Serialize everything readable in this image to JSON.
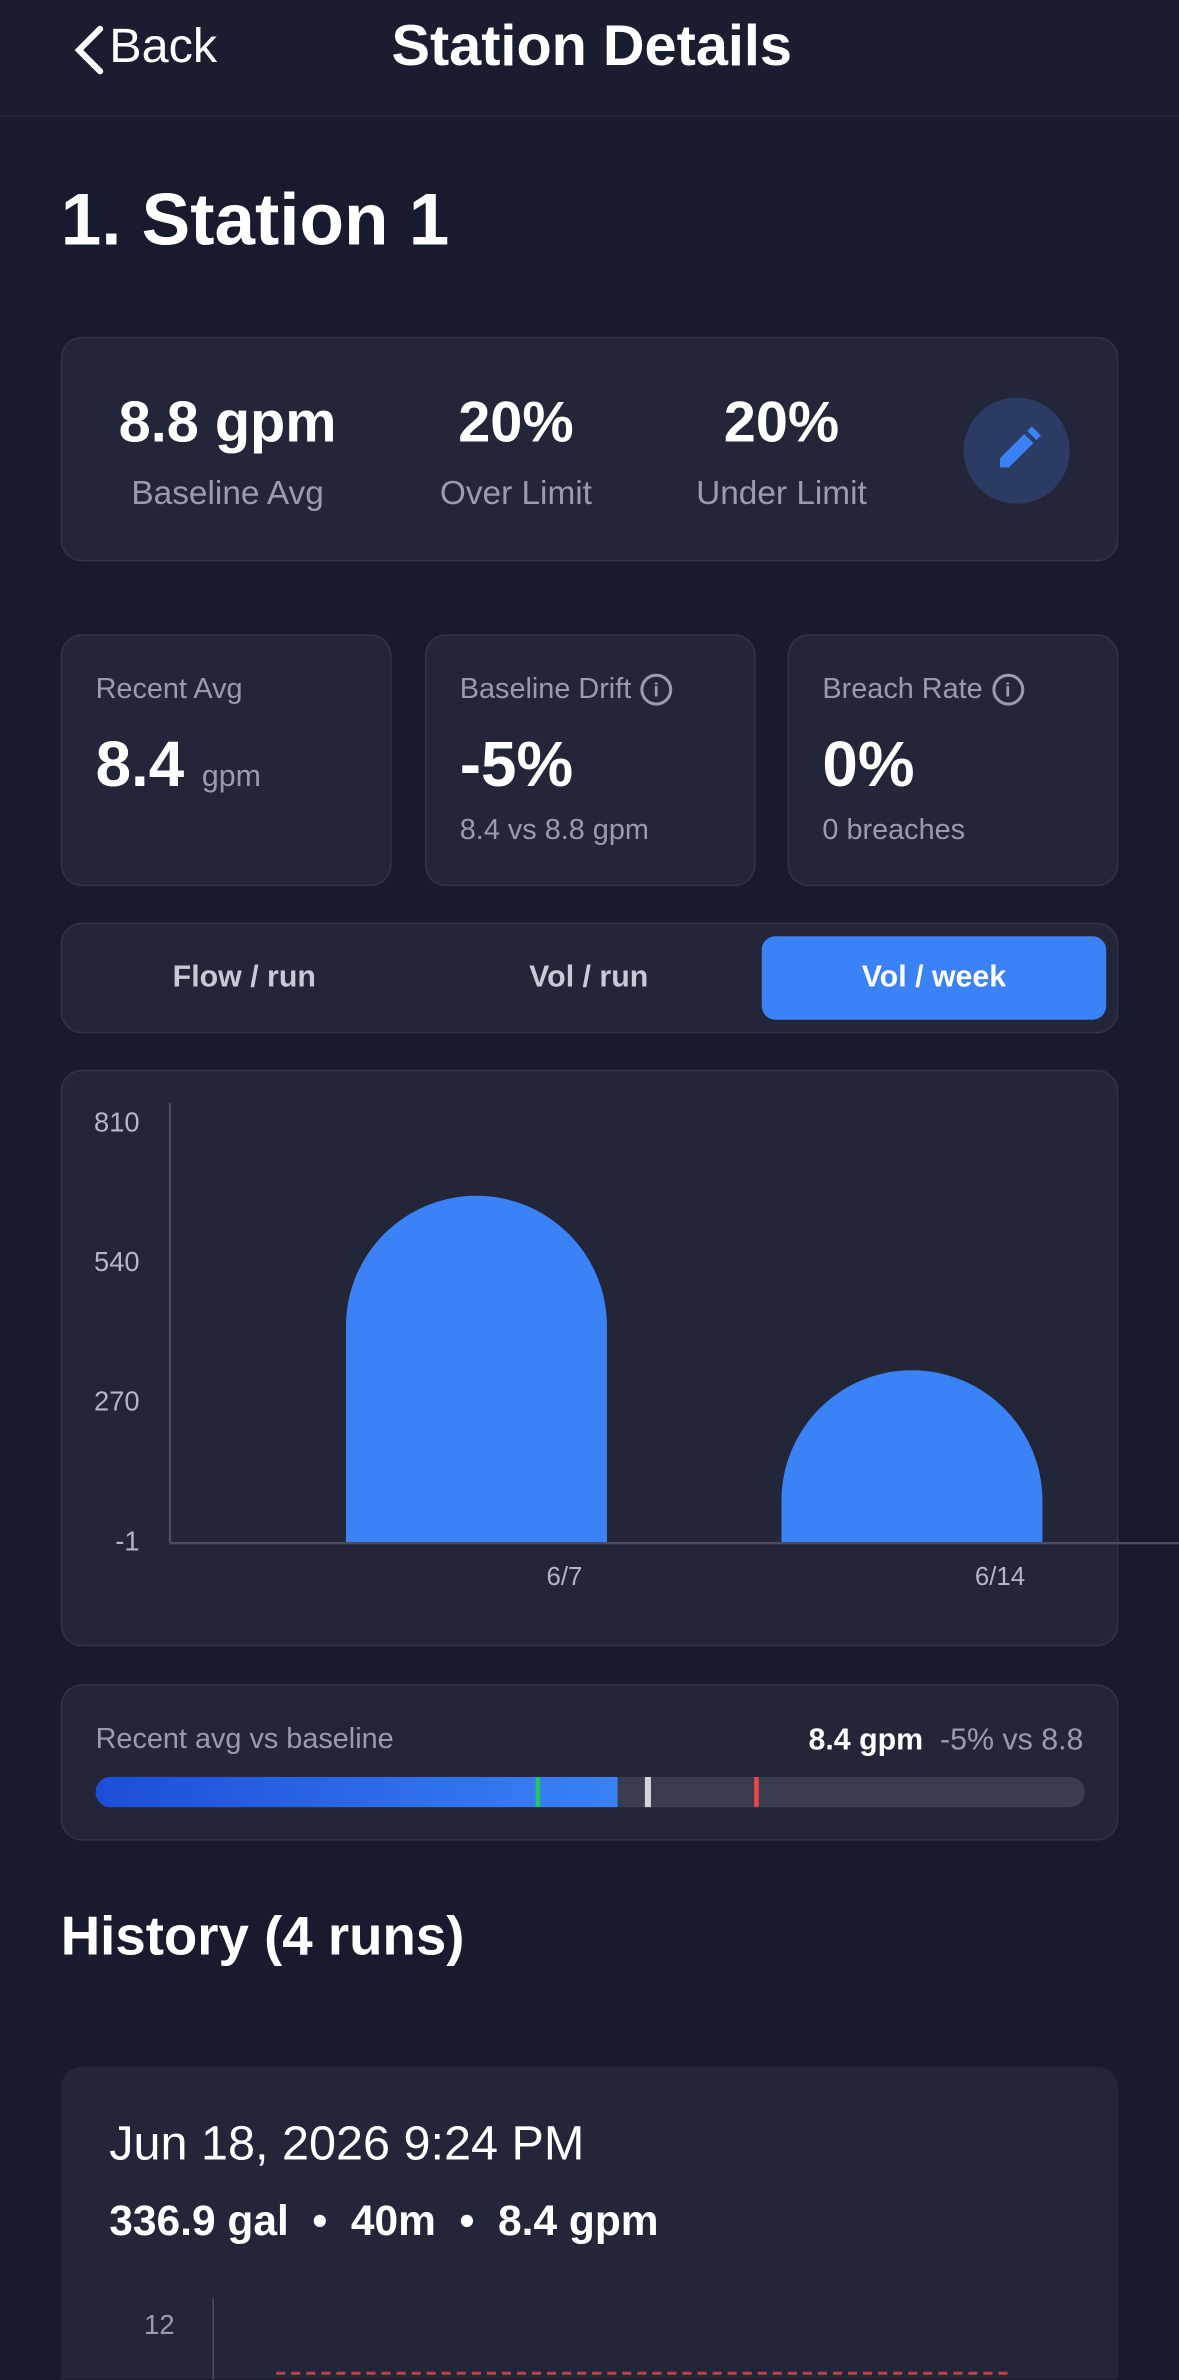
{
  "header": {
    "back": "Back",
    "title": "Station Details"
  },
  "station": {
    "name": "1. Station 1"
  },
  "summary": {
    "items": [
      {
        "value": "8.8 gpm",
        "label": "Baseline Avg"
      },
      {
        "value": "20%",
        "label": "Over Limit"
      },
      {
        "value": "20%",
        "label": "Under Limit"
      }
    ]
  },
  "cards": [
    {
      "label": "Recent Avg",
      "value": "8.4",
      "unit": "gpm"
    },
    {
      "label": "Baseline Drift",
      "value": "-5%",
      "sub": "8.4 vs 8.8 gpm"
    },
    {
      "label": "Breach Rate",
      "value": "0%",
      "sub": "0 breaches"
    }
  ],
  "tabs": [
    "Flow / run",
    "Vol / run",
    "Vol / week"
  ],
  "chart_data": {
    "type": "bar",
    "categories": [
      "6/7",
      "6/14"
    ],
    "values": [
      672,
      334
    ],
    "color": "#3b82f6",
    "ylim": [
      -1,
      810
    ],
    "yticks": [
      -1,
      270,
      540,
      810
    ]
  },
  "comparison": {
    "label": "Recent avg vs baseline",
    "value": "8.4 gpm",
    "delta": "-5% vs 8.8"
  },
  "history": {
    "title": "History (4 runs)",
    "runs": [
      {
        "date": "Jun 18, 2026 9:24 PM",
        "volume": "336.9 gal",
        "duration": "40m",
        "flow": "8.4 gpm",
        "ytick": "12"
      }
    ]
  }
}
